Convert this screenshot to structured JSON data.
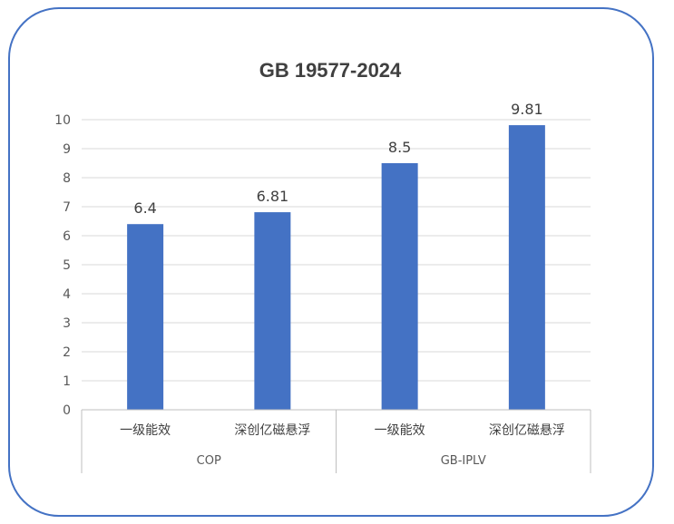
{
  "chart_data": {
    "type": "bar",
    "title": "GB 19577-2024",
    "xlabel": "",
    "ylabel": "",
    "ylim": [
      0,
      10
    ],
    "yticks": [
      "0",
      "1",
      "2",
      "3",
      "4",
      "5",
      "6",
      "7",
      "8",
      "9",
      "10"
    ],
    "grid": true,
    "legend": "none",
    "groups": [
      {
        "name": "COP",
        "categories": [
          "一级能效",
          "深创亿磁悬浮"
        ],
        "values": [
          6.4,
          6.81
        ],
        "labels": [
          "6.4",
          "6.81"
        ]
      },
      {
        "name": "GB-IPLV",
        "categories": [
          "一级能效",
          "深创亿磁悬浮"
        ],
        "values": [
          8.5,
          9.81
        ],
        "labels": [
          "8.5",
          "9.81"
        ]
      }
    ],
    "bar_color": "#4472c4"
  }
}
